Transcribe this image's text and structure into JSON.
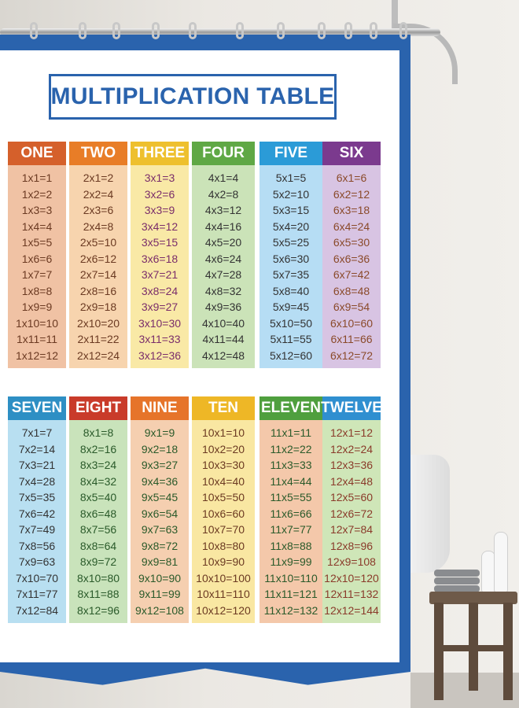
{
  "title": "MULTIPLICATION TABLE",
  "colors": {
    "curtain_border": "#2a63ad",
    "title_text": "#2a63ad"
  },
  "columns": [
    {
      "label": "ONE",
      "head_color": "#d5602b",
      "body_color": "#f0c2a4",
      "text_color": "#6b3a22",
      "facts": [
        "1x1=1",
        "1x2=2",
        "1x3=3",
        "1x4=4",
        "1x5=5",
        "1x6=6",
        "1x7=7",
        "1x8=8",
        "1x9=9",
        "1x10=10",
        "1x11=11",
        "1x12=12"
      ]
    },
    {
      "label": "TWO",
      "head_color": "#e87d27",
      "body_color": "#f7d4ae",
      "text_color": "#6b3a22",
      "facts": [
        "2x1=2",
        "2x2=4",
        "2x3=6",
        "2x4=8",
        "2x5=10",
        "2x6=12",
        "2x7=14",
        "2x8=16",
        "2x9=18",
        "2x10=20",
        "2x11=22",
        "2x12=24"
      ]
    },
    {
      "label": "THREE",
      "head_color": "#eec02e",
      "body_color": "#f9e9a6",
      "text_color": "#7a2d6a",
      "facts": [
        "3x1=3",
        "3x2=6",
        "3x3=9",
        "3x4=12",
        "3x5=15",
        "3x6=18",
        "3x7=21",
        "3x8=24",
        "3x9=27",
        "3x10=30",
        "3x11=33",
        "3x12=36"
      ]
    },
    {
      "label": "FOUR",
      "head_color": "#5fa845",
      "body_color": "#cbe3b8",
      "text_color": "#333333",
      "facts": [
        "4x1=4",
        "4x2=8",
        "4x3=12",
        "4x4=16",
        "4x5=20",
        "4x6=24",
        "4x7=28",
        "4x8=32",
        "4x9=36",
        "4x10=40",
        "4x11=44",
        "4x12=48"
      ]
    },
    {
      "label": "FIVE",
      "head_color": "#2b9bd7",
      "body_color": "#b6ddf4",
      "text_color": "#333333",
      "facts": [
        "5x1=5",
        "5x2=10",
        "5x3=15",
        "5x4=20",
        "5x5=25",
        "5x6=30",
        "5x7=35",
        "5x8=40",
        "5x9=45",
        "5x10=50",
        "5x11=55",
        "5x12=60"
      ]
    },
    {
      "label": "SIX",
      "head_color": "#7b3a8e",
      "body_color": "#d8c4e3",
      "text_color": "#8a4a2a",
      "facts": [
        "6x1=6",
        "6x2=12",
        "6x3=18",
        "6x4=24",
        "6x5=30",
        "6x6=36",
        "6x7=42",
        "6x8=48",
        "6x9=54",
        "6x10=60",
        "6x11=66",
        "6x12=72"
      ]
    },
    {
      "label": "SEVEN",
      "head_color": "#2e8fc4",
      "body_color": "#b8dff1",
      "text_color": "#333333",
      "facts": [
        "7x1=7",
        "7x2=14",
        "7x3=21",
        "7x4=28",
        "7x5=35",
        "7x6=42",
        "7x7=49",
        "7x8=56",
        "7x9=63",
        "7x10=70",
        "7x11=77",
        "7x12=84"
      ]
    },
    {
      "label": "EIGHT",
      "head_color": "#c93b2a",
      "body_color": "#c9e3bb",
      "text_color": "#2a5a2a",
      "facts": [
        "8x1=8",
        "8x2=16",
        "8x3=24",
        "8x4=32",
        "8x5=40",
        "8x6=48",
        "8x7=56",
        "8x8=64",
        "8x9=72",
        "8x10=80",
        "8x11=88",
        "8x12=96"
      ]
    },
    {
      "label": "NINE",
      "head_color": "#e6742a",
      "body_color": "#f5cfb0",
      "text_color": "#2a5a2a",
      "facts": [
        "9x1=9",
        "9x2=18",
        "9x3=27",
        "9x4=36",
        "9x5=45",
        "9x6=54",
        "9x7=63",
        "9x8=72",
        "9x9=81",
        "9x10=90",
        "9x11=99",
        "9x12=108"
      ]
    },
    {
      "label": "TEN",
      "head_color": "#eeb726",
      "body_color": "#f9e7a2",
      "text_color": "#6b3a22",
      "facts": [
        "10x1=10",
        "10x2=20",
        "10x3=30",
        "10x4=40",
        "10x5=50",
        "10x6=60",
        "10x7=70",
        "10x8=80",
        "10x9=90",
        "10x10=100",
        "10x11=110",
        "10x12=120"
      ]
    },
    {
      "label": "ELEVEN",
      "head_color": "#4f9f3e",
      "body_color": "#f4c8aa",
      "text_color": "#2a5a2a",
      "facts": [
        "11x1=11",
        "11x2=22",
        "11x3=33",
        "11x4=44",
        "11x5=55",
        "11x6=66",
        "11x7=77",
        "11x8=88",
        "11x9=99",
        "11x10=110",
        "11x11=121",
        "11x12=132"
      ]
    },
    {
      "label": "TWELVE",
      "head_color": "#2f8fd0",
      "body_color": "#cfe6b8",
      "text_color": "#8a3a2a",
      "facts": [
        "12x1=12",
        "12x2=24",
        "12x3=36",
        "12x4=48",
        "12x5=60",
        "12x6=72",
        "12x7=84",
        "12x8=96",
        "12x9=108",
        "12x10=120",
        "12x11=132",
        "12x12=144"
      ]
    }
  ]
}
